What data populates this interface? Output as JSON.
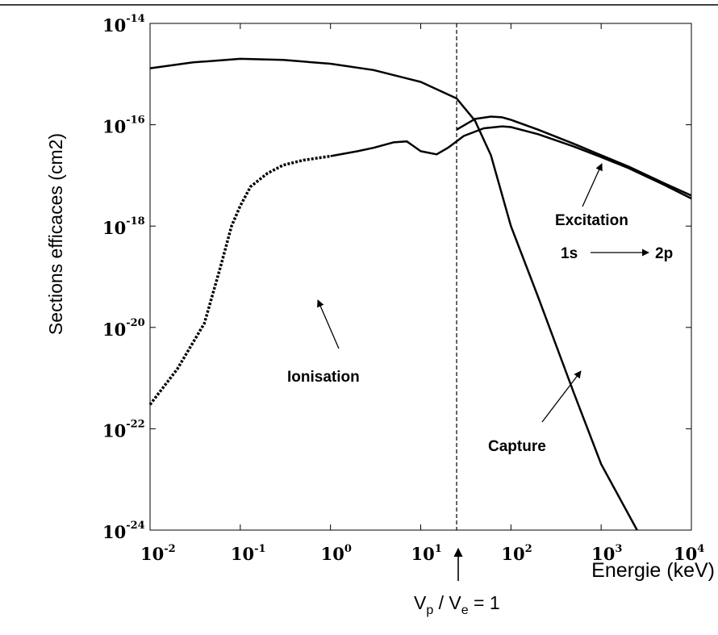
{
  "chart_data": {
    "type": "line",
    "xlabel": "Energie (keV)",
    "ylabel": "Sections efficaces (cm2)",
    "xscale": "log",
    "yscale": "log",
    "xlim": [
      0.01,
      10000
    ],
    "ylim": [
      1e-24,
      1e-14
    ],
    "x_ticks": [
      {
        "value": 0.01,
        "base": "10",
        "exp": "-2"
      },
      {
        "value": 0.1,
        "base": "10",
        "exp": "-1"
      },
      {
        "value": 1,
        "base": "10",
        "exp": "0"
      },
      {
        "value": 10,
        "base": "10",
        "exp": "1"
      },
      {
        "value": 100,
        "base": "10",
        "exp": "2"
      },
      {
        "value": 1000,
        "base": "10",
        "exp": "3"
      },
      {
        "value": 10000,
        "base": "10",
        "exp": "4"
      }
    ],
    "y_ticks": [
      {
        "value": 1e-14,
        "base": "10",
        "exp": "-14"
      },
      {
        "value": 1e-16,
        "base": "10",
        "exp": "-16"
      },
      {
        "value": 1e-18,
        "base": "10",
        "exp": "-18"
      },
      {
        "value": 1e-20,
        "base": "10",
        "exp": "-20"
      },
      {
        "value": 1e-22,
        "base": "10",
        "exp": "-22"
      },
      {
        "value": 1e-24,
        "base": "10",
        "exp": "-24"
      }
    ],
    "series": [
      {
        "name": "Capture",
        "x": [
          0.01,
          0.03,
          0.1,
          0.3,
          1,
          3,
          10,
          25,
          40,
          60,
          100,
          200,
          500,
          1000,
          2500
        ],
        "y": [
          1.3e-15,
          1.7e-15,
          2e-15,
          1.9e-15,
          1.6e-15,
          1.2e-15,
          7e-16,
          3.3e-16,
          1.2e-16,
          2.5e-17,
          1e-18,
          4e-20,
          5e-22,
          2e-23,
          1e-24
        ]
      },
      {
        "name": "Excitation",
        "x": [
          25,
          40,
          60,
          80,
          100,
          200,
          500,
          1000,
          2000,
          5000,
          10000
        ],
        "y": [
          8e-17,
          1.3e-16,
          1.45e-16,
          1.4e-16,
          1.25e-16,
          8e-17,
          4.2e-17,
          2.5e-17,
          1.5e-17,
          7e-18,
          4e-18
        ]
      },
      {
        "name": "Ionisation",
        "dashed_x_range": [
          0.01,
          1
        ],
        "x": [
          0.01,
          0.02,
          0.04,
          0.06,
          0.08,
          0.1,
          0.13,
          0.2,
          0.3,
          0.5,
          1,
          2,
          3,
          5,
          7,
          10,
          15,
          20,
          30,
          50,
          80,
          100,
          200,
          500,
          1000,
          2000,
          5000,
          10000
        ],
        "y": [
          3e-22,
          1.5e-21,
          1.2e-20,
          1.5e-19,
          1e-18,
          2.5e-18,
          6e-18,
          1.1e-17,
          1.6e-17,
          2e-17,
          2.4e-17,
          3e-17,
          3.5e-17,
          4.5e-17,
          4.7e-17,
          3e-17,
          2.6e-17,
          3.5e-17,
          6e-17,
          8.5e-17,
          9.3e-17,
          9e-17,
          6.5e-17,
          3.7e-17,
          2.3e-17,
          1.4e-17,
          6.5e-18,
          3.5e-18
        ]
      }
    ],
    "reference_line": {
      "x": 25,
      "style": "dashed",
      "label": {
        "v": "V",
        "p": "p",
        "slash": " / V",
        "e": "e",
        "tail": " = 1"
      }
    },
    "annotations": {
      "ionisation": "Ionisation",
      "capture": "Capture",
      "excitation": "Excitation",
      "from": "1s",
      "to": "2p"
    },
    "grid": false,
    "legend": "none"
  }
}
